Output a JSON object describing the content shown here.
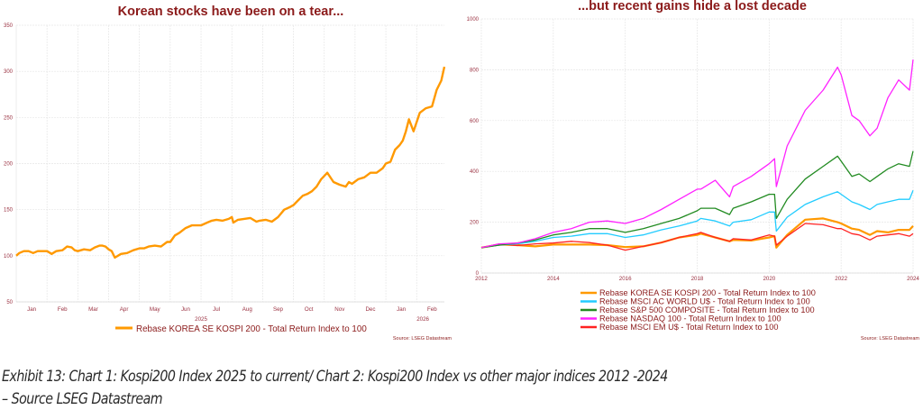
{
  "chart_data": [
    {
      "type": "line",
      "title": "Korean stocks have been on a tear...",
      "xlabel": "",
      "ylabel": "",
      "ylim": [
        50,
        350
      ],
      "yticks": [
        50,
        100,
        150,
        200,
        250,
        300,
        350
      ],
      "xticks": [
        "Jan",
        "Feb",
        "Mar",
        "Apr",
        "May",
        "Jun",
        "Jul",
        "Aug",
        "Sep",
        "Oct",
        "Nov",
        "Dec",
        "Jan",
        "Feb"
      ],
      "year_labels": [
        "2025",
        "2026"
      ],
      "grid": true,
      "legend_position": "bottom",
      "source": "Source: LSEG Datastream",
      "x_unit": "months since start of Jan 2025",
      "xlim": [
        0,
        13.9
      ],
      "series": [
        {
          "name": "Rebase KOREA SE KOSPI 200 - Total Return Index to 100",
          "color": "#ff9900",
          "x": [
            0,
            0.1,
            0.25,
            0.4,
            0.55,
            0.7,
            0.9,
            1.0,
            1.05,
            1.15,
            1.3,
            1.5,
            1.65,
            1.8,
            1.9,
            2.0,
            2.2,
            2.4,
            2.55,
            2.7,
            2.8,
            2.9,
            3.0,
            3.1,
            3.2,
            3.4,
            3.6,
            3.8,
            4.0,
            4.15,
            4.3,
            4.5,
            4.7,
            4.9,
            5.0,
            5.15,
            5.3,
            5.5,
            5.7,
            5.85,
            6.0,
            6.2,
            6.35,
            6.5,
            6.7,
            6.9,
            7.0,
            7.05,
            7.2,
            7.4,
            7.6,
            7.8,
            7.9,
            8.1,
            8.3,
            8.5,
            8.7,
            8.9,
            9.0,
            9.15,
            9.3,
            9.45,
            9.6,
            9.75,
            9.9,
            10.1,
            10.3,
            10.5,
            10.7,
            10.8,
            10.9,
            11.1,
            11.3,
            11.5,
            11.7,
            11.9,
            12.0,
            12.15,
            12.3,
            12.45,
            12.55,
            12.65,
            12.75,
            12.9,
            13.1,
            13.3,
            13.5,
            13.65,
            13.8,
            13.9
          ],
          "values": [
            100,
            103,
            105,
            105,
            103,
            105,
            105,
            105,
            104,
            102,
            105,
            106,
            110,
            109,
            106,
            105,
            107,
            106,
            109,
            111,
            111,
            110,
            107,
            105,
            98,
            102,
            103,
            106,
            108,
            108,
            110,
            111,
            110,
            115,
            115,
            122,
            125,
            130,
            133,
            133,
            133,
            136,
            138,
            139,
            138,
            140,
            142,
            136,
            139,
            140,
            141,
            137,
            138,
            139,
            137,
            142,
            150,
            153,
            155,
            160,
            165,
            167,
            170,
            175,
            183,
            190,
            180,
            177,
            175,
            180,
            178,
            183,
            185,
            190,
            190,
            195,
            200,
            202,
            215,
            220,
            225,
            235,
            248,
            235,
            255,
            260,
            262,
            280,
            290,
            305
          ]
        }
      ]
    },
    {
      "type": "line",
      "title": "...but recent gains hide a lost decade",
      "xlabel": "",
      "ylabel": "",
      "ylim": [
        0,
        1000
      ],
      "yticks": [
        0,
        200,
        400,
        600,
        800,
        1000
      ],
      "xlim": [
        2012,
        2024
      ],
      "xticks": [
        2012,
        2014,
        2016,
        2018,
        2020,
        2022,
        2024
      ],
      "grid": true,
      "legend_position": "bottom",
      "source": "Source: LSEG Datastream",
      "x": [
        2012,
        2012.5,
        2013,
        2013.5,
        2014,
        2014.5,
        2015,
        2015.5,
        2016,
        2016.5,
        2017,
        2017.5,
        2018,
        2018.1,
        2018.5,
        2018.9,
        2019,
        2019.5,
        2020,
        2020.15,
        2020.2,
        2020.5,
        2021,
        2021.5,
        2021.9,
        2022,
        2022.3,
        2022.5,
        2022.8,
        2023,
        2023.3,
        2023.6,
        2023.9,
        2024
      ],
      "series": [
        {
          "name": "Rebase KOREA SE KOSPI 200 - Total Return Index to 100",
          "color": "#ff9900",
          "values": [
            100,
            112,
            110,
            105,
            112,
            112,
            112,
            110,
            102,
            105,
            120,
            140,
            150,
            155,
            140,
            125,
            130,
            128,
            140,
            145,
            100,
            150,
            210,
            215,
            200,
            195,
            175,
            170,
            150,
            165,
            160,
            170,
            170,
            185
          ]
        },
        {
          "name": "Rebase MSCI AC WORLD U$ - Total Return Index to 100",
          "color": "#22ccff",
          "values": [
            100,
            110,
            115,
            125,
            140,
            145,
            155,
            155,
            140,
            150,
            170,
            185,
            205,
            215,
            205,
            185,
            200,
            210,
            240,
            240,
            165,
            220,
            270,
            300,
            320,
            310,
            280,
            270,
            250,
            270,
            280,
            290,
            290,
            325
          ]
        },
        {
          "name": "Rebase S&P 500 COMPOSITE - Total Return Index to 100",
          "color": "#228b22",
          "values": [
            100,
            110,
            118,
            130,
            150,
            160,
            175,
            175,
            160,
            175,
            195,
            215,
            245,
            255,
            255,
            230,
            255,
            280,
            310,
            310,
            215,
            290,
            370,
            420,
            460,
            440,
            380,
            390,
            360,
            380,
            410,
            430,
            420,
            480
          ]
        },
        {
          "name": "Rebase NASDAQ 100 - Total Return Index to 100",
          "color": "#ff22ff",
          "values": [
            100,
            115,
            118,
            135,
            160,
            175,
            200,
            205,
            195,
            215,
            250,
            290,
            330,
            330,
            365,
            300,
            340,
            380,
            430,
            450,
            340,
            500,
            640,
            720,
            810,
            780,
            620,
            600,
            540,
            570,
            690,
            760,
            720,
            840
          ]
        },
        {
          "name": "Rebase MSCI EM U$ - Total Return Index to 100",
          "color": "#ff2222",
          "values": [
            100,
            115,
            108,
            115,
            118,
            125,
            120,
            110,
            90,
            105,
            120,
            140,
            155,
            160,
            140,
            125,
            135,
            130,
            150,
            145,
            110,
            145,
            195,
            190,
            175,
            175,
            155,
            150,
            130,
            145,
            150,
            155,
            145,
            155
          ]
        }
      ]
    }
  ],
  "caption": {
    "line1": "Exhibit 13: Chart 1: Kospi200 Index 2025 to current/ Chart 2: Kospi200 Index vs other major indices 2012 -2024",
    "line2": "– Source LSEG Datastream"
  },
  "colors": {
    "title": "#8b1a1a",
    "tick_text": "#9a3040",
    "legend_text": "#8b1a1a",
    "grid": "#e6e6e6"
  }
}
